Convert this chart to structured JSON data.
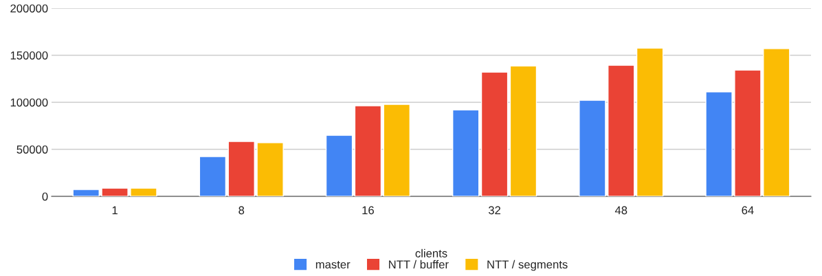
{
  "chart_data": {
    "type": "bar",
    "xlabel": "clients",
    "categories": [
      "1",
      "8",
      "16",
      "32",
      "48",
      "64"
    ],
    "series": [
      {
        "name": "master",
        "color": "#4285f4",
        "values": [
          7300,
          42300,
          65000,
          92000,
          102200,
          111000
        ]
      },
      {
        "name": "NTT / buffer",
        "color": "#ea4335",
        "values": [
          8700,
          58400,
          96400,
          132100,
          139400,
          134300
        ]
      },
      {
        "name": "NTT / segments",
        "color": "#fbbc04",
        "values": [
          8700,
          57000,
          97800,
          138700,
          157700,
          157000
        ]
      }
    ],
    "ylim": [
      0,
      200000
    ],
    "yticks": [
      0,
      50000,
      100000,
      150000,
      200000
    ],
    "grid": "y",
    "legend": "bottom"
  }
}
